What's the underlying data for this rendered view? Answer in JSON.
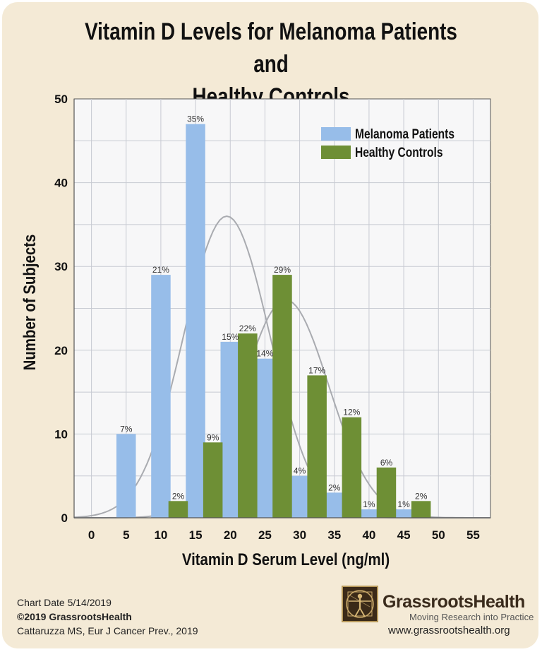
{
  "title_line1": "Vitamin D Levels for Melanoma Patients and",
  "title_line2": "Healthy Controls",
  "chart_data": {
    "type": "bar",
    "xlabel": "Vitamin D Serum Level (ng/ml)",
    "ylabel": "Number of Subjects",
    "xlim": [
      -2.5,
      57.5
    ],
    "ylim": [
      0,
      50
    ],
    "x_ticks": [
      0,
      5,
      10,
      15,
      20,
      25,
      30,
      35,
      40,
      45,
      50,
      55
    ],
    "y_ticks": [
      0,
      10,
      20,
      30,
      40,
      50
    ],
    "grid": true,
    "legend_position": "top-right",
    "series": [
      {
        "name": "Melanoma Patients",
        "color": "#97bde9",
        "x": [
          5,
          10,
          15,
          20,
          25,
          30,
          35,
          40,
          45
        ],
        "values": [
          10,
          29,
          47,
          21,
          19,
          5,
          3,
          1,
          1
        ],
        "labels": [
          "7%",
          "21%",
          "35%",
          "15%",
          "14%",
          "4%",
          "2%",
          "1%",
          "1%"
        ]
      },
      {
        "name": "Healthy Controls",
        "color": "#6e8f35",
        "x": [
          12.5,
          17.5,
          22.5,
          27.5,
          32.5,
          37.5,
          42.5,
          47.5
        ],
        "values": [
          2,
          9,
          22,
          29,
          17,
          12,
          6,
          2
        ],
        "labels": [
          "2%",
          "9%",
          "22%",
          "29%",
          "17%",
          "12%",
          "6%",
          "2%"
        ]
      }
    ],
    "fit_curves": [
      {
        "series": "Melanoma Patients",
        "mean": 19.5,
        "peak": 36
      },
      {
        "series": "Healthy Controls",
        "mean": 28,
        "peak": 26
      }
    ]
  },
  "footer": {
    "chart_date": "Chart Date 5/14/2019",
    "copyright": "©2019 GrassrootsHealth",
    "citation": "Cattaruzza MS, Eur J Cancer Prev., 2019"
  },
  "brand": {
    "name": "GrassrootsHealth",
    "tagline": "Moving Research into Practice",
    "url": "www.grassrootshealth.org",
    "logo_icon": "vitruvian-man-icon"
  }
}
